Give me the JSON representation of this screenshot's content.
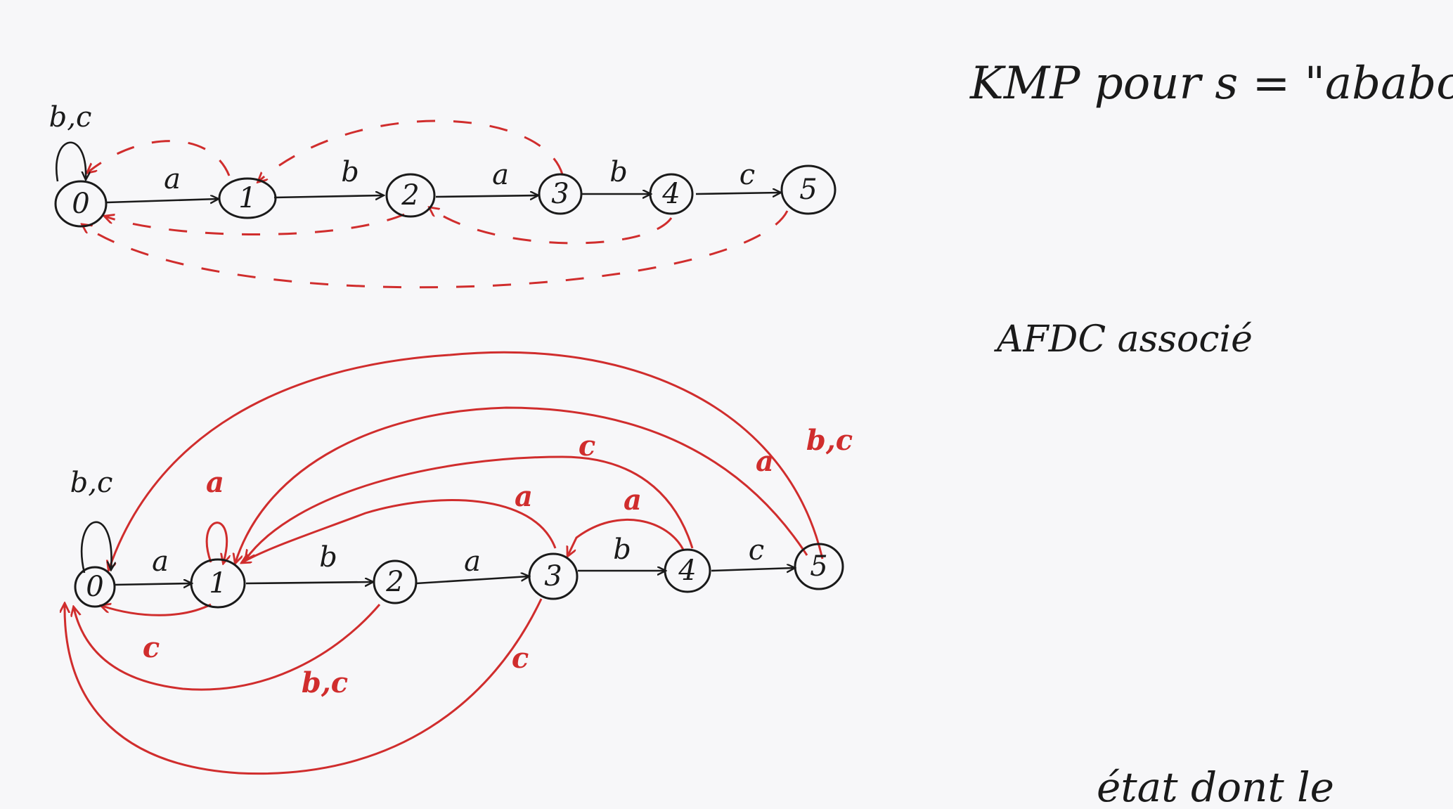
{
  "notes": {
    "title": "KMP pour s = \"ababc\"",
    "subtitle": "AFDC associé",
    "bottom_fragment": "état dont le"
  },
  "kmp_automaton": {
    "states": [
      "0",
      "1",
      "2",
      "3",
      "4",
      "5"
    ],
    "transitions": [
      {
        "from": "0",
        "to": "0",
        "label": "b,c"
      },
      {
        "from": "0",
        "to": "1",
        "label": "a"
      },
      {
        "from": "1",
        "to": "2",
        "label": "b"
      },
      {
        "from": "2",
        "to": "3",
        "label": "a"
      },
      {
        "from": "3",
        "to": "4",
        "label": "b"
      },
      {
        "from": "4",
        "to": "5",
        "label": "c"
      }
    ],
    "failure_links": [
      {
        "from": "1",
        "to": "0"
      },
      {
        "from": "3",
        "to": "1"
      },
      {
        "from": "2",
        "to": "0"
      },
      {
        "from": "4",
        "to": "2"
      },
      {
        "from": "5",
        "to": "0"
      }
    ]
  },
  "afdc_automaton": {
    "states": [
      "0",
      "1",
      "2",
      "3",
      "4",
      "5"
    ],
    "transitions": [
      {
        "from": "0",
        "to": "0",
        "label": "b,c"
      },
      {
        "from": "0",
        "to": "1",
        "label": "a"
      },
      {
        "from": "1",
        "to": "2",
        "label": "b"
      },
      {
        "from": "2",
        "to": "3",
        "label": "a"
      },
      {
        "from": "3",
        "to": "4",
        "label": "b"
      },
      {
        "from": "4",
        "to": "5",
        "label": "c"
      }
    ],
    "added_transitions": [
      {
        "from": "1",
        "to": "1",
        "label": "a"
      },
      {
        "from": "1",
        "to": "0",
        "label": "c"
      },
      {
        "from": "2",
        "to": "0",
        "label": "b,c"
      },
      {
        "from": "3",
        "to": "1",
        "label": "a"
      },
      {
        "from": "3",
        "to": "0",
        "label": "c"
      },
      {
        "from": "4",
        "to": "3",
        "label": "a"
      },
      {
        "from": "4",
        "to": "1",
        "label": "c"
      },
      {
        "from": "5",
        "to": "1",
        "label": "a"
      },
      {
        "from": "5",
        "to": "0",
        "label": "b,c"
      }
    ]
  },
  "colors": {
    "ink": "#1a1a1a",
    "red_ink": "#d02d2d",
    "paper": "#f7f7f9"
  }
}
